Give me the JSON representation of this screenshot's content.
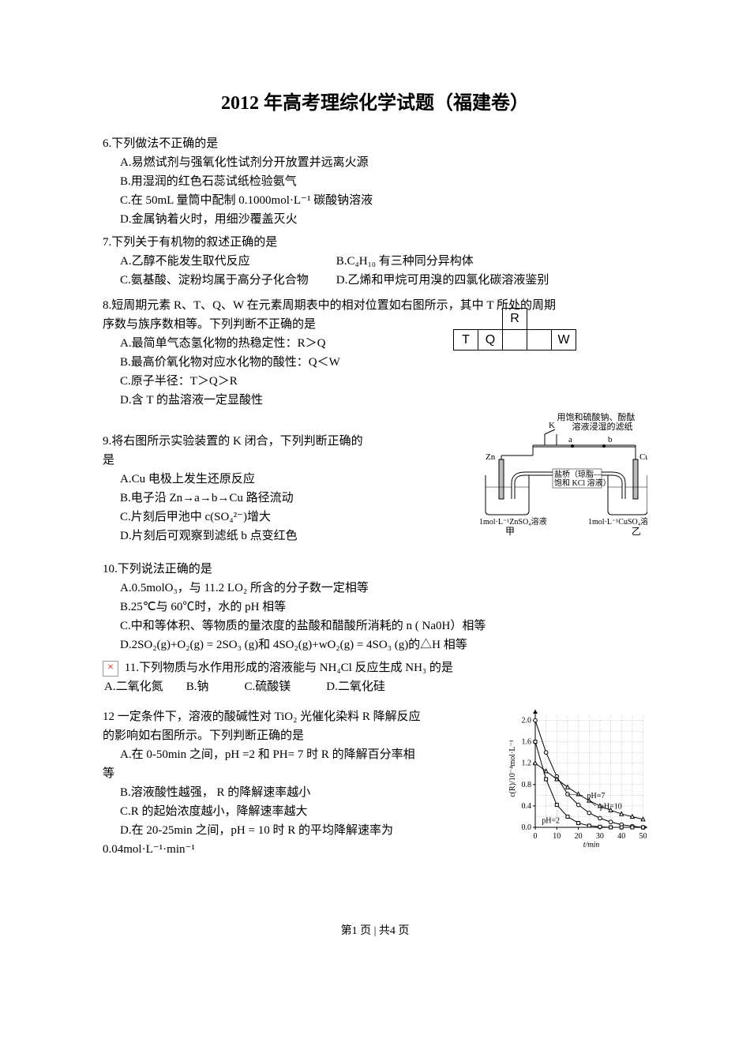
{
  "title": "2012 年高考理综化学试题（福建卷）",
  "q6": {
    "stem": "6.下列做法不正确的是",
    "A": "A.易燃试剂与强氧化性试剂分开放置并远离火源",
    "B": "B.用湿润的红色石蕊试纸检验氨气",
    "C": "C.在 50mL 量筒中配制 0.1000mol·L⁻¹ 碳酸钠溶液",
    "D": "D.金属钠着火时，用细沙覆盖灭火"
  },
  "q7": {
    "stem": "7.下列关于有机物的叙述正确的是",
    "A": "A.乙醇不能发生取代反应",
    "B": "B.C₄H₁₀ 有三种同分异构体",
    "C": "C.氨基酸、淀粉均属于高分子化合物",
    "D": "D.乙烯和甲烷可用溴的四氯化碳溶液鉴别"
  },
  "q8": {
    "stem1": "8.短周期元素 R、T、Q、W 在元素周期表中的相对位置如右图所示，其中 T 所处的周期",
    "stem2": "序数与族序数相等。下列判断不正确的是",
    "A": "A.最简单气态氢化物的热稳定性：R＞Q",
    "B": "B.最高价氧化物对应水化物的酸性：Q＜W",
    "C": "C.原子半径：T＞Q＞R",
    "D": "D.含 T 的盐溶液一定显酸性",
    "table": {
      "R": "R",
      "T": "T",
      "Q": "Q",
      "W": "W"
    }
  },
  "q9": {
    "stem1": "9.将右图所示实验装置的 K 闭合，下列判断正确的",
    "stem2": "是",
    "A": "A.Cu 电极上发生还原反应",
    "B": "B.电子沿 Zn→a→b→Cu 路径流动",
    "C": "C.片刻后甲池中 c(SO₄²⁻)增大",
    "D": "D.片刻后可观察到滤纸 b 点变红色",
    "diagram": {
      "top_label": "用饱和硫酸钠、酚酞",
      "top_label2": "溶液浸湿的滤纸",
      "K": "K",
      "a": "a",
      "b": "b",
      "Zn": "Zn",
      "Cu": "Cu",
      "bridge1": "盐桥（琼脂—",
      "bridge2": "饱和 KCl 溶液）",
      "left_sol": "1mol·L⁻¹ZnSO₄溶液",
      "right_sol": "1mol·L⁻¹CuSO₄溶液",
      "jia": "甲",
      "yi": "乙"
    }
  },
  "q10": {
    "stem": "10.下列说法正确的是",
    "A": "A.0.5molO₃，与 11.2 LO₂ 所含的分子数一定相等",
    "B": "B.25℃与 60℃时，水的 pH 相等",
    "C": "C.中和等体积、等物质的量浓度的盐酸和醋酸所消耗的 n ( Na0H）相等",
    "D": "D.2SO₂(g)+O₂(g) = 2SO₃ (g)和 4SO₂(g)+wO₂(g) = 4SO₃ (g)的△H 相等"
  },
  "q11": {
    "stem": "11.下列物质与水作用形成的溶液能与 NH₄Cl 反应生成 NH₃ 的是",
    "A": "A.二氧化氮",
    "B": "B.钠",
    "C": "C.硫酸镁",
    "D": "D.二氧化硅",
    "broken": "×"
  },
  "q12": {
    "stem1": "12 一定条件下，溶液的酸碱性对 TiO₂ 光催化染料 R 降解反应",
    "stem2": "的影响如右图所示。下列判断正确的是",
    "A1": "A.在 0-50min 之间，pH =2 和 PH= 7 时 R 的降解百分率相",
    "A2": "等",
    "B": "B.溶液酸性越强， R 的降解速率越小",
    "C": "C.R 的起始浓度越小，降解速率越大",
    "D1": "D.在 20-25min 之间，pH = 10 时 R 的平均降解速率为",
    "D2": "0.04mol·L⁻¹·min⁻¹",
    "chart": {
      "ylabel": "c(R)/10⁻⁴mol·L⁻¹",
      "xlabel": "t/min",
      "yticks": [
        "0.0",
        "0.4",
        "0.8",
        "1.2",
        "1.6",
        "2.0"
      ],
      "xticks": [
        "0",
        "10",
        "20",
        "30",
        "40",
        "50"
      ],
      "labels": {
        "ph2": "pH=2",
        "ph7": "pH=7",
        "ph10": "pH=10"
      },
      "ylim": [
        0,
        2.2
      ],
      "xlim": [
        0,
        52
      ],
      "grid_color": "#888888",
      "series_ph2": {
        "x": [
          0,
          5,
          10,
          15,
          20,
          25,
          30,
          35,
          40,
          45,
          50
        ],
        "y": [
          1.6,
          0.9,
          0.42,
          0.2,
          0.08,
          0.03,
          0.01,
          0.0,
          0.0,
          0.0,
          0.0
        ],
        "marker": "square",
        "color": "#000000"
      },
      "series_ph7": {
        "x": [
          0,
          5,
          10,
          15,
          20,
          25,
          30,
          35,
          40,
          45,
          50
        ],
        "y": [
          2.0,
          1.4,
          0.95,
          0.62,
          0.42,
          0.27,
          0.17,
          0.1,
          0.05,
          0.02,
          0.0
        ],
        "marker": "circle",
        "color": "#000000"
      },
      "series_ph10": {
        "x": [
          0,
          5,
          10,
          15,
          20,
          25,
          30,
          35,
          40,
          45,
          50
        ],
        "y": [
          1.2,
          1.05,
          0.9,
          0.75,
          0.62,
          0.5,
          0.4,
          0.32,
          0.25,
          0.2,
          0.15
        ],
        "marker": "triangle",
        "color": "#000000"
      },
      "font_size": 10
    }
  },
  "footer": "第1 页 | 共4 页"
}
